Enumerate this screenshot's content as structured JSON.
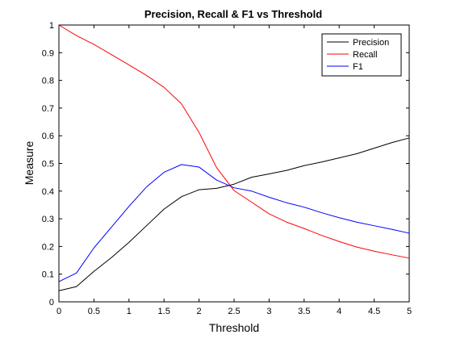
{
  "chart_data": {
    "type": "line",
    "title": "Precision, Recall & F1 vs Threshold",
    "xlabel": "Threshold",
    "ylabel": "Measure",
    "xlim": [
      0,
      5
    ],
    "ylim": [
      0,
      1
    ],
    "xticks": [
      0,
      0.5,
      1,
      1.5,
      2,
      2.5,
      3,
      3.5,
      4,
      4.5,
      5
    ],
    "yticks": [
      0,
      0.1,
      0.2,
      0.3,
      0.4,
      0.5,
      0.6,
      0.7,
      0.8,
      0.9,
      1
    ],
    "xtick_labels": [
      "0",
      "0.5",
      "1",
      "1.5",
      "2",
      "2.5",
      "3",
      "3.5",
      "4",
      "4.5",
      "5"
    ],
    "ytick_labels": [
      "0",
      "0.1",
      "0.2",
      "0.3",
      "0.4",
      "0.5",
      "0.6",
      "0.7",
      "0.8",
      "0.9",
      "1"
    ],
    "grid": false,
    "legend": "top-right",
    "x": [
      0,
      0.25,
      0.5,
      0.75,
      1,
      1.25,
      1.5,
      1.75,
      2,
      2.25,
      2.5,
      2.75,
      3,
      3.25,
      3.5,
      3.75,
      4,
      4.25,
      4.5,
      4.75,
      5
    ],
    "series": [
      {
        "name": "Precision",
        "color": "#000000",
        "values": [
          0.04,
          0.055,
          0.11,
          0.16,
          0.215,
          0.275,
          0.335,
          0.38,
          0.405,
          0.41,
          0.425,
          0.45,
          0.462,
          0.475,
          0.492,
          0.505,
          0.52,
          0.535,
          0.555,
          0.575,
          0.592
        ]
      },
      {
        "name": "Recall",
        "color": "#ff0000",
        "values": [
          1.0,
          0.962,
          0.93,
          0.893,
          0.856,
          0.818,
          0.775,
          0.715,
          0.612,
          0.485,
          0.402,
          0.36,
          0.318,
          0.288,
          0.265,
          0.24,
          0.218,
          0.198,
          0.183,
          0.17,
          0.158
        ]
      },
      {
        "name": "F1",
        "color": "#0000ff",
        "values": [
          0.073,
          0.104,
          0.195,
          0.27,
          0.345,
          0.415,
          0.468,
          0.496,
          0.487,
          0.44,
          0.412,
          0.4,
          0.378,
          0.358,
          0.342,
          0.322,
          0.304,
          0.288,
          0.275,
          0.262,
          0.248
        ]
      }
    ]
  }
}
